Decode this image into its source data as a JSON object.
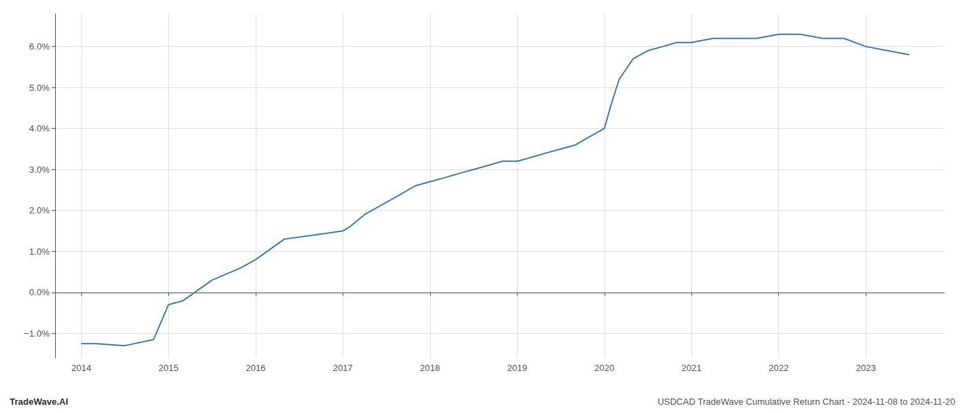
{
  "chart_data": {
    "type": "line",
    "x": [
      2014.0,
      2014.17,
      2014.5,
      2014.83,
      2015.0,
      2015.17,
      2015.5,
      2015.83,
      2016.0,
      2016.33,
      2016.67,
      2017.0,
      2017.08,
      2017.25,
      2017.5,
      2017.67,
      2017.83,
      2018.0,
      2018.17,
      2018.33,
      2018.5,
      2018.67,
      2018.83,
      2019.0,
      2019.17,
      2019.33,
      2019.5,
      2019.67,
      2019.83,
      2020.0,
      2020.08,
      2020.17,
      2020.33,
      2020.5,
      2020.67,
      2020.83,
      2021.0,
      2021.25,
      2021.5,
      2021.75,
      2022.0,
      2022.25,
      2022.5,
      2022.75,
      2023.0,
      2023.5
    ],
    "values": [
      -0.0125,
      -0.0125,
      -0.013,
      -0.0115,
      -0.003,
      -0.002,
      0.003,
      0.006,
      0.008,
      0.013,
      0.014,
      0.015,
      0.016,
      0.019,
      0.022,
      0.024,
      0.026,
      0.027,
      0.028,
      0.029,
      0.03,
      0.031,
      0.032,
      0.032,
      0.033,
      0.034,
      0.035,
      0.036,
      0.038,
      0.04,
      0.046,
      0.052,
      0.057,
      0.059,
      0.06,
      0.061,
      0.061,
      0.062,
      0.062,
      0.062,
      0.063,
      0.063,
      0.062,
      0.062,
      0.06,
      0.058
    ],
    "color": "#3a7ebf",
    "xlim": [
      2013.7,
      2023.9
    ],
    "xticks": [
      2014,
      2015,
      2016,
      2017,
      2018,
      2019,
      2020,
      2021,
      2022,
      2023
    ],
    "ylim": [
      -0.016,
      0.068
    ],
    "yticks": [
      {
        "value": -0.01,
        "label": "−1.0%"
      },
      {
        "value": 0.0,
        "label": "0.0%"
      },
      {
        "value": 0.01,
        "label": "1.0%"
      },
      {
        "value": 0.02,
        "label": "2.0%"
      },
      {
        "value": 0.03,
        "label": "3.0%"
      },
      {
        "value": 0.04,
        "label": "4.0%"
      },
      {
        "value": 0.05,
        "label": "5.0%"
      },
      {
        "value": 0.06,
        "label": "6.0%"
      }
    ],
    "grid": true,
    "annotations": [
      "TradeWave.AI",
      "USDCAD TradeWave Cumulative Return Chart - 2024-11-08 to 2024-11-20"
    ]
  }
}
